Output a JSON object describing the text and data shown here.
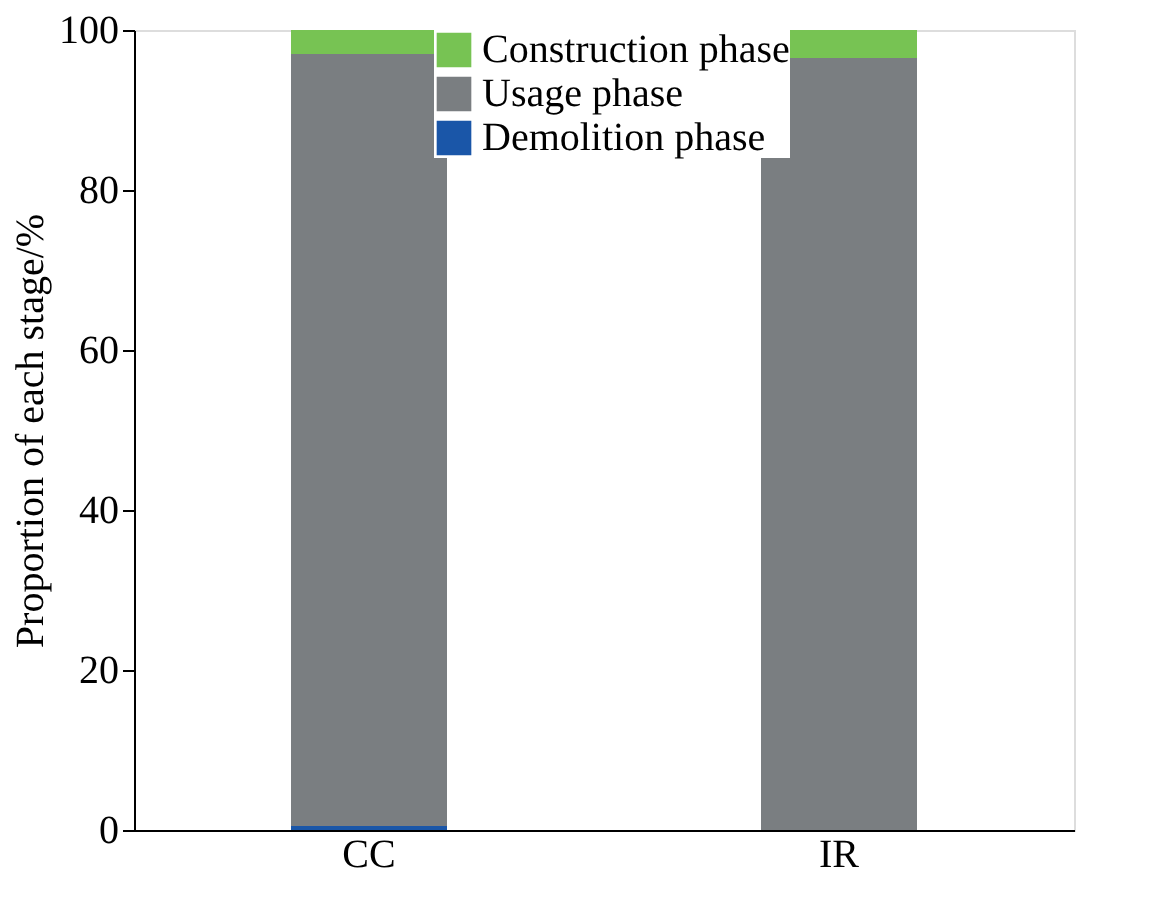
{
  "chart_data": {
    "type": "bar",
    "stacked": true,
    "ylabel": "Proportion of each stage/%",
    "categories": [
      "CC",
      "IR"
    ],
    "series": [
      {
        "name": "Demolition phase",
        "color": "#1a56a8",
        "values": [
          0.5,
          0
        ]
      },
      {
        "name": "Usage phase",
        "color": "#7a7e81",
        "values": [
          96.5,
          96.5
        ]
      },
      {
        "name": "Construction phase",
        "color": "#77c353",
        "values": [
          3,
          3.5
        ]
      }
    ],
    "ylim": [
      0,
      100
    ],
    "yticks": [
      0,
      20,
      40,
      60,
      80,
      100
    ],
    "grid": false,
    "legend": "top"
  }
}
